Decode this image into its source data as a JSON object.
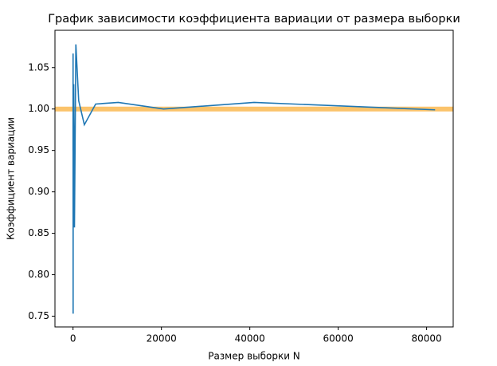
{
  "chart_data": {
    "type": "line",
    "title": "График зависимости коэффициента вариации от размера выборки",
    "x_label": "Размер выборки N",
    "y_label": "Коэффициент вариации",
    "x": [
      5,
      10,
      20,
      40,
      80,
      160,
      320,
      640,
      1280,
      2560,
      5120,
      10240,
      20480,
      40960,
      81920
    ],
    "series": [
      {
        "color": "#1f77b4",
        "values": [
          0.95,
          1.067,
          0.753,
          1.02,
          0.92,
          1.03,
          0.857,
          1.078,
          1.01,
          0.981,
          1.006,
          1.008,
          1.0,
          1.008,
          0.999
        ]
      }
    ],
    "reference_line": {
      "y": 1.0,
      "color": "#fbc36b"
    },
    "xlim": [
      -4091,
      86016
    ],
    "ylim": [
      0.737,
      1.095
    ],
    "xticks": [
      0,
      20000,
      40000,
      60000,
      80000
    ],
    "yticks": [
      0.75,
      {
        "value": 0.8,
        "label": "0.80"
      },
      0.85,
      {
        "value": 0.9,
        "label": "0.90"
      },
      0.95,
      {
        "value": 1.0,
        "label": "1.00"
      },
      1.05
    ],
    "grid": false
  }
}
